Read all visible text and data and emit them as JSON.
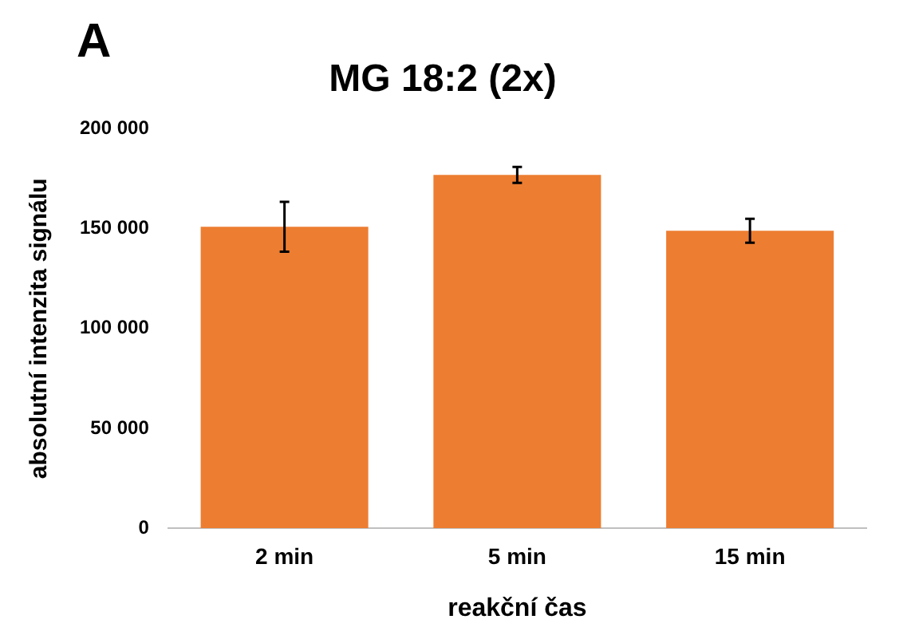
{
  "chart_data": {
    "type": "bar",
    "title": "MG 18:2 (2x)",
    "annotations": [
      "A"
    ],
    "xlabel": "reakční čas",
    "ylabel": "absolutní intenzita signálu",
    "categories": [
      "2 min",
      "5 min",
      "15 min"
    ],
    "values": [
      151000,
      177000,
      149000
    ],
    "errors": [
      12500,
      4000,
      6000
    ],
    "color": "#ed7d31",
    "ylim": [
      0,
      200000
    ],
    "yticks": [
      {
        "value": 0,
        "label": "0"
      },
      {
        "value": 50000,
        "label": "50 000"
      },
      {
        "value": 100000,
        "label": "100 000"
      },
      {
        "value": 150000,
        "label": "150 000"
      },
      {
        "value": 200000,
        "label": "200 000"
      }
    ],
    "grid": false,
    "legend": false
  }
}
